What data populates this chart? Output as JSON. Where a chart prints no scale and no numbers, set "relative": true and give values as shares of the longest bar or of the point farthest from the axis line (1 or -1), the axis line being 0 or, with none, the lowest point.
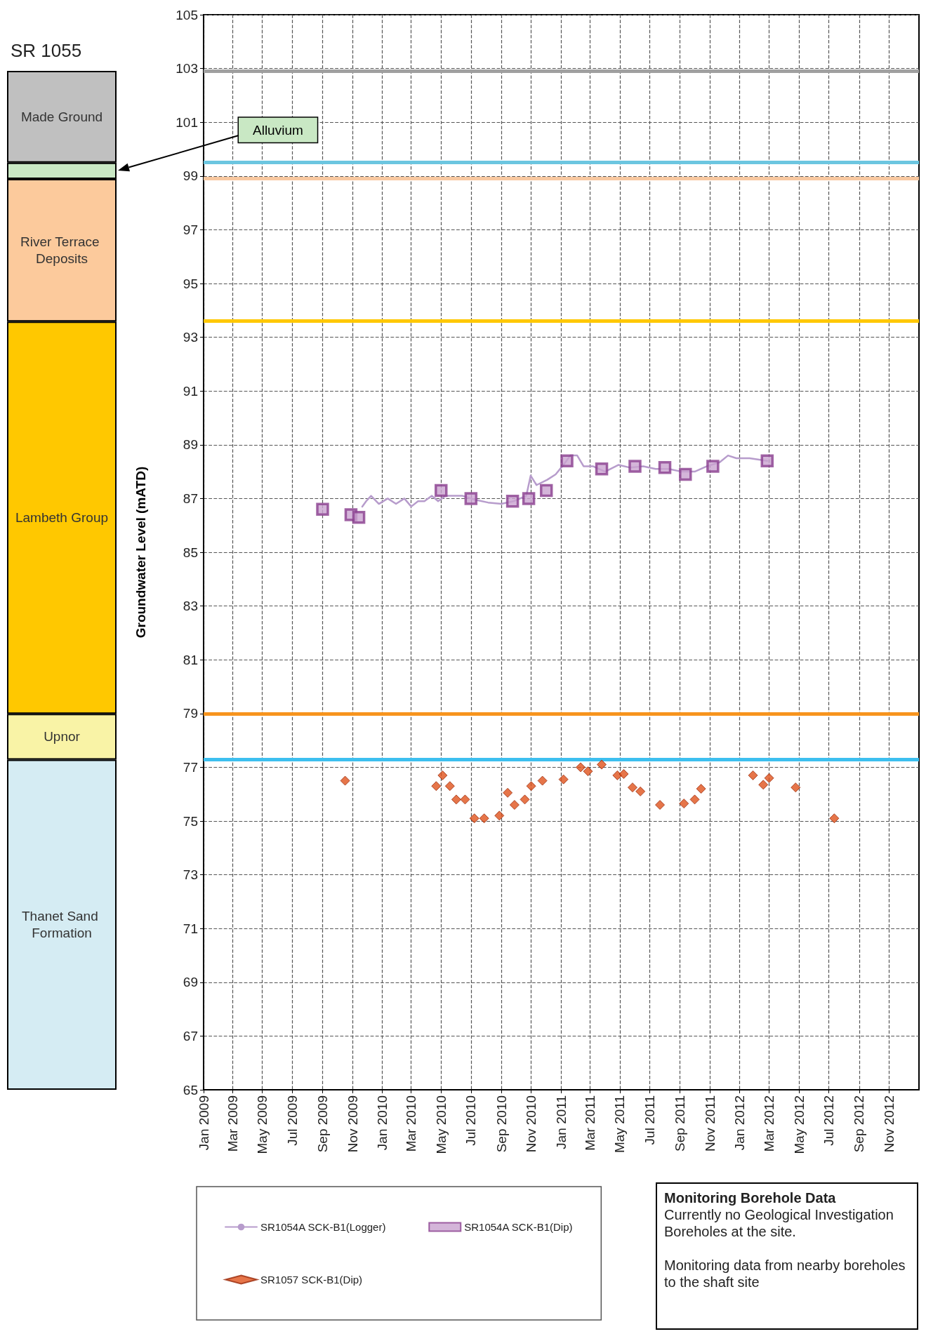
{
  "chart_data": [
    {
      "type": "bar",
      "title": "SR 1055",
      "stacked": true,
      "relative": true,
      "categories": [
        null
      ],
      "series": [
        {
          "name": "Thanet Sand Formation",
          "color": "#d5ecf3",
          "values": [
            0.324
          ]
        },
        {
          "name": "Upnor",
          "color": "#f9f3a6",
          "values": [
            0.045
          ]
        },
        {
          "name": "Lambeth Group",
          "color": "#ffc800",
          "values": [
            0.385
          ]
        },
        {
          "name": "River Terrace Deposits",
          "color": "#fcca9c",
          "values": [
            0.14
          ]
        },
        {
          "name": "Alluvium",
          "color": "#c9e8c4",
          "values": [
            0.016
          ]
        },
        {
          "name": "Made Ground",
          "color": "#c0c0c0",
          "values": [
            0.09
          ]
        }
      ]
    },
    {
      "type": "scatter",
      "ylabel": "Groundwater Level (mATD)",
      "xlim": [
        "2009-01-01",
        "2013-01-01"
      ],
      "xticks": [
        {
          "value": "2009-01-01",
          "label": "Jan 2009"
        },
        {
          "value": "2009-03-01",
          "label": "Mar 2009"
        },
        {
          "value": "2009-05-01",
          "label": "May 2009"
        },
        {
          "value": "2009-07-01",
          "label": "Jul 2009"
        },
        {
          "value": "2009-09-01",
          "label": "Sep 2009"
        },
        {
          "value": "2009-11-01",
          "label": "Nov 2009"
        },
        {
          "value": "2010-01-01",
          "label": "Jan 2010"
        },
        {
          "value": "2010-03-01",
          "label": "Mar 2010"
        },
        {
          "value": "2010-05-01",
          "label": "May 2010"
        },
        {
          "value": "2010-07-01",
          "label": "Jul 2010"
        },
        {
          "value": "2010-09-01",
          "label": "Sep 2010"
        },
        {
          "value": "2010-11-01",
          "label": "Nov 2010"
        },
        {
          "value": "2011-01-01",
          "label": "Jan 2011"
        },
        {
          "value": "2011-03-01",
          "label": "Mar 2011"
        },
        {
          "value": "2011-05-01",
          "label": "May 2011"
        },
        {
          "value": "2011-07-01",
          "label": "Jul 2011"
        },
        {
          "value": "2011-09-01",
          "label": "Sep 2011"
        },
        {
          "value": "2011-11-01",
          "label": "Nov 2011"
        },
        {
          "value": "2012-01-01",
          "label": "Jan 2012"
        },
        {
          "value": "2012-03-01",
          "label": "Mar 2012"
        },
        {
          "value": "2012-05-01",
          "label": "May 2012"
        },
        {
          "value": "2012-07-01",
          "label": "Jul 2012"
        },
        {
          "value": "2012-09-01",
          "label": "Sep 2012"
        },
        {
          "value": "2012-11-01",
          "label": "Nov 2012"
        }
      ],
      "ylim": [
        65,
        105
      ],
      "yticks": [
        65,
        67,
        69,
        71,
        73,
        75,
        77,
        79,
        81,
        83,
        85,
        87,
        89,
        91,
        93,
        95,
        97,
        99,
        101,
        103,
        105
      ],
      "grid": true,
      "legend": "bottom",
      "ref_lines": [
        {
          "axis": "y",
          "value": 102.9,
          "color": "#a0a0a0"
        },
        {
          "axis": "y",
          "value": 99.5,
          "color": "#6cc6e0"
        },
        {
          "axis": "y",
          "value": 98.9,
          "color": "#f8c8a0"
        },
        {
          "axis": "y",
          "value": 93.6,
          "color": "#ffc800"
        },
        {
          "axis": "y",
          "value": 79.0,
          "color": "#f7941d"
        },
        {
          "axis": "y",
          "value": 77.3,
          "color": "#3dbfef"
        }
      ],
      "annotations": [
        "Monitoring Borehole Data",
        "Currently no Geological Investigation Boreholes at the site.",
        "Monitoring  data from nearby boreholes to the shaft site"
      ],
      "series": [
        {
          "name": "SR1054A SCK-B1(Logger)",
          "type": "line",
          "marker": "none",
          "color": "#b79ccc",
          "x": [
            "2009-11-21",
            "2009-11-29",
            "2009-12-09",
            "2009-12-25",
            "2010-01-12",
            "2010-01-29",
            "2010-02-15",
            "2010-03-01",
            "2010-03-15",
            "2010-03-28",
            "2010-04-12",
            "2010-04-25",
            "2010-05-10",
            "2010-05-28",
            "2010-06-14",
            "2010-07-10",
            "2010-08-05",
            "2010-09-01",
            "2010-09-26",
            "2010-10-22",
            "2010-10-31",
            "2010-11-12",
            "2010-12-04",
            "2010-12-21",
            "2011-01-08",
            "2011-01-20",
            "2011-02-03",
            "2011-02-16",
            "2011-03-07",
            "2011-04-01",
            "2011-04-28",
            "2011-05-22",
            "2011-06-18",
            "2011-07-13",
            "2011-08-09",
            "2011-09-04",
            "2011-10-01",
            "2011-10-26",
            "2011-11-21",
            "2011-12-08",
            "2011-12-25",
            "2012-01-21",
            "2012-02-26"
          ],
          "values": [
            86.7,
            86.9,
            87.1,
            86.8,
            87.0,
            86.8,
            87.0,
            86.7,
            86.9,
            86.9,
            87.1,
            86.9,
            87.1,
            87.1,
            87.1,
            86.95,
            86.85,
            86.8,
            86.9,
            87.1,
            87.85,
            87.5,
            87.7,
            87.9,
            88.3,
            88.6,
            88.6,
            88.2,
            88.2,
            88.0,
            88.25,
            88.15,
            88.2,
            88.1,
            88.1,
            88.0,
            88.0,
            88.2,
            88.35,
            88.6,
            88.5,
            88.5,
            88.4
          ]
        },
        {
          "name": "SR1054A SCK-B1(Dip)",
          "marker": "square",
          "color": "#8a3f8f",
          "x": [
            "2009-09-01",
            "2009-10-29",
            "2009-11-14",
            "2010-05-01",
            "2010-07-01",
            "2010-09-24",
            "2010-10-27",
            "2010-12-02",
            "2011-01-13",
            "2011-03-25",
            "2011-06-01",
            "2011-08-01",
            "2011-09-12",
            "2011-11-07",
            "2012-02-26"
          ],
          "values": [
            86.6,
            86.4,
            86.3,
            87.3,
            87.0,
            86.9,
            87.0,
            87.3,
            88.4,
            88.1,
            88.2,
            88.15,
            87.9,
            88.2,
            88.4
          ]
        },
        {
          "name": "SR1057 SCK-B1(Dip)",
          "marker": "diamond",
          "color": "#e0521b",
          "x": [
            "2009-10-17",
            "2010-04-21",
            "2010-05-04",
            "2010-05-19",
            "2010-06-01",
            "2010-06-19",
            "2010-07-08",
            "2010-07-28",
            "2010-08-28",
            "2010-09-14",
            "2010-09-28",
            "2010-10-19",
            "2010-11-01",
            "2010-11-24",
            "2011-01-06",
            "2011-02-10",
            "2011-02-25",
            "2011-03-25",
            "2011-04-26",
            "2011-05-09",
            "2011-05-27",
            "2011-06-12",
            "2011-07-22",
            "2011-09-09",
            "2011-10-01",
            "2011-10-14",
            "2012-01-28",
            "2012-02-18",
            "2012-03-01",
            "2012-04-24",
            "2012-07-12"
          ],
          "values": [
            76.5,
            76.3,
            76.7,
            76.3,
            75.8,
            75.8,
            75.1,
            75.1,
            75.2,
            76.05,
            75.6,
            75.8,
            76.3,
            76.5,
            76.55,
            77.0,
            76.85,
            77.1,
            76.7,
            76.75,
            76.25,
            76.1,
            75.6,
            75.65,
            75.8,
            76.2,
            76.7,
            76.35,
            76.6,
            76.25,
            75.1
          ]
        }
      ]
    }
  ]
}
